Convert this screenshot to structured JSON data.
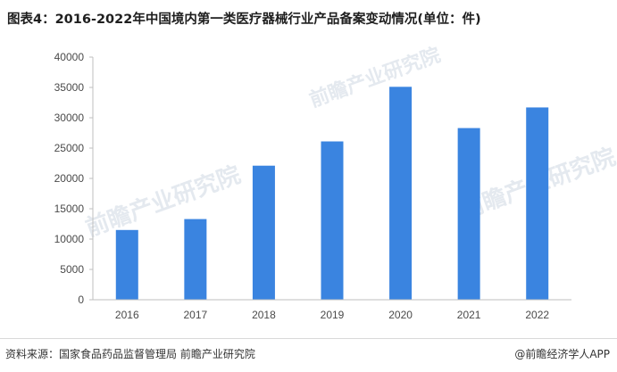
{
  "title": "图表4：2016-2022年中国境内第一类医疗器械行业产品备案变动情况(单位：件)",
  "footer": {
    "source": "资料来源：国家食品药品监督管理局 前瞻产业研究院",
    "brand": "@前瞻经济学人APP"
  },
  "watermark": "前瞻产业研究院",
  "colors": {
    "bar": "#3a84e0",
    "axis": "#bfbfbf"
  },
  "chart_data": {
    "type": "bar",
    "categories": [
      "2016",
      "2017",
      "2018",
      "2019",
      "2020",
      "2021",
      "2022"
    ],
    "values": [
      11500,
      13300,
      22100,
      26100,
      35100,
      28300,
      31700
    ],
    "ylim": [
      0,
      40000
    ],
    "yticks": [
      0,
      5000,
      10000,
      15000,
      20000,
      25000,
      30000,
      35000,
      40000
    ],
    "grid": false,
    "legend": "none"
  }
}
